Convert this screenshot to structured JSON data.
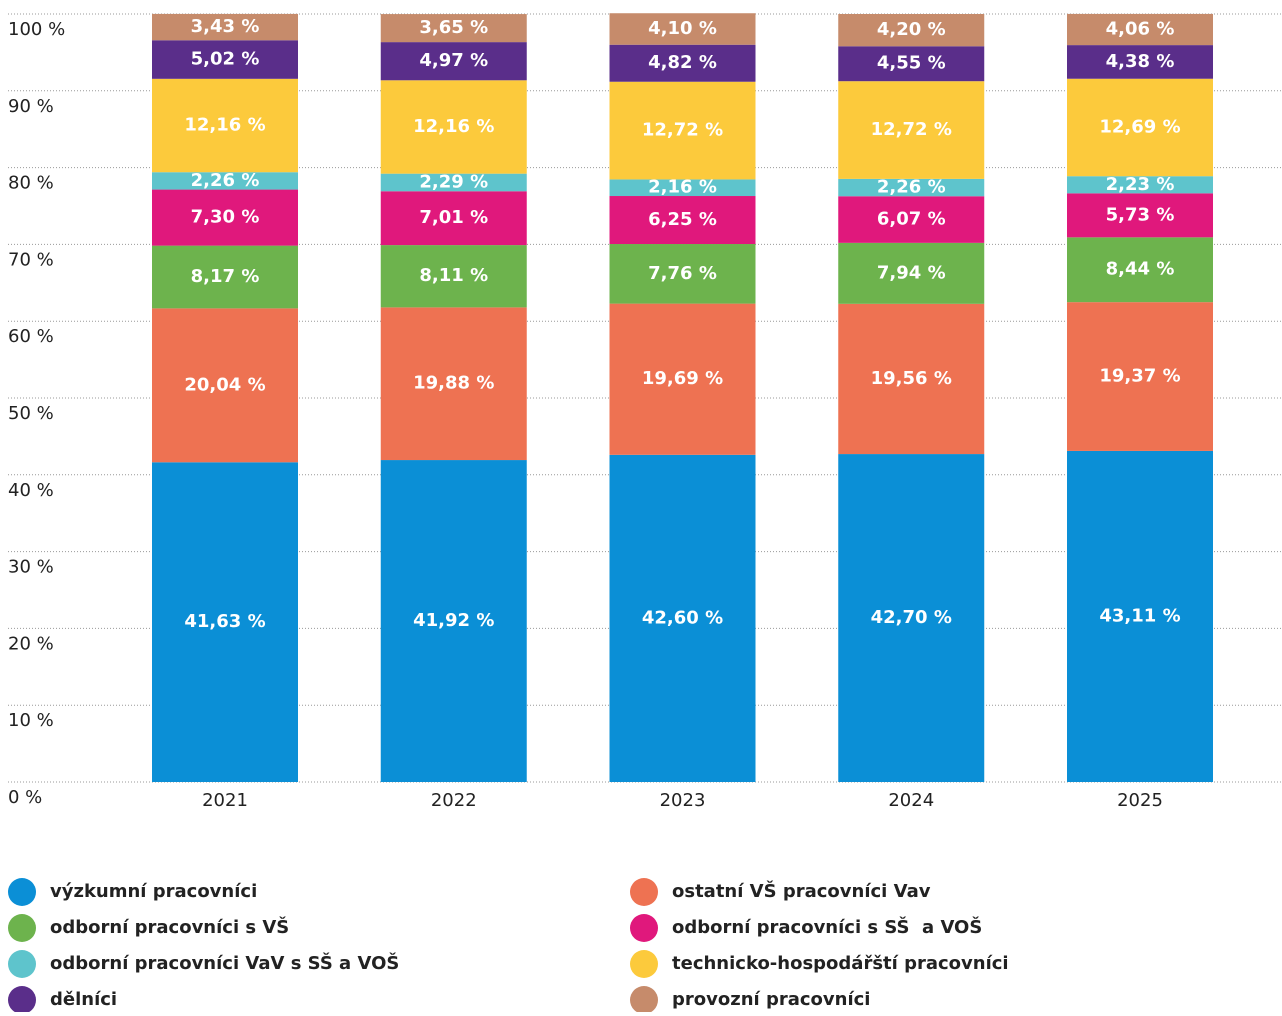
{
  "chart_data": {
    "type": "bar",
    "stacked": true,
    "categories": [
      "2021",
      "2022",
      "2023",
      "2024",
      "2025"
    ],
    "ylim": [
      0,
      100
    ],
    "yticks": [
      {
        "value": 0,
        "label": "0 %"
      },
      {
        "value": 10,
        "label": "10 %"
      },
      {
        "value": 20,
        "label": "20 %"
      },
      {
        "value": 30,
        "label": "30 %"
      },
      {
        "value": 40,
        "label": "40 %"
      },
      {
        "value": 50,
        "label": "50 %"
      },
      {
        "value": 60,
        "label": "60 %"
      },
      {
        "value": 70,
        "label": "70 %"
      },
      {
        "value": 80,
        "label": "80 %"
      },
      {
        "value": 90,
        "label": "90 %"
      },
      {
        "value": 100,
        "label": "100 %"
      }
    ],
    "grid": true,
    "series": [
      {
        "name": "výzkumní pracovníci",
        "color": "#0b8fd6",
        "values": [
          41.63,
          41.92,
          42.6,
          42.7,
          43.11
        ],
        "value_labels": [
          "41,63 %",
          "41,92 %",
          "42,60 %",
          "42,70 %",
          "43,11 %"
        ]
      },
      {
        "name": "ostatní VŠ pracovníci Vav",
        "color": "#ee7252",
        "values": [
          20.04,
          19.88,
          19.69,
          19.56,
          19.37
        ],
        "value_labels": [
          "20,04 %",
          "19,88 %",
          "19,69 %",
          "19,56 %",
          "19,37 %"
        ]
      },
      {
        "name": "odborní pracovníci s VŠ",
        "color": "#6db34d",
        "values": [
          8.17,
          8.11,
          7.76,
          7.94,
          8.44
        ],
        "value_labels": [
          "8,17 %",
          "8,11 %",
          "7,76 %",
          "7,94 %",
          "8,44 %"
        ]
      },
      {
        "name": "odborní pracovníci s SŠ  a VOŠ",
        "color": "#e0187c",
        "values": [
          7.3,
          7.01,
          6.25,
          6.07,
          5.73
        ],
        "value_labels": [
          "7,30 %",
          "7,01 %",
          "6,25 %",
          "6,07 %",
          "5,73 %"
        ]
      },
      {
        "name": "odborní pracovníci VaV s SŠ a VOŠ",
        "color": "#5ec4cc",
        "values": [
          2.26,
          2.29,
          2.16,
          2.26,
          2.23
        ],
        "value_labels": [
          "2,26 %",
          "2,29 %",
          "2,16 %",
          "2,26 %",
          "2,23 %"
        ]
      },
      {
        "name": "technicko-hospodářští pracovníci",
        "color": "#fcca3c",
        "values": [
          12.16,
          12.16,
          12.72,
          12.72,
          12.69
        ],
        "value_labels": [
          "12,16 %",
          "12,16 %",
          "12,72 %",
          "12,72 %",
          "12,69 %"
        ]
      },
      {
        "name": "dělníci",
        "color": "#5a2e8a",
        "values": [
          5.02,
          4.97,
          4.82,
          4.55,
          4.38
        ],
        "value_labels": [
          "5,02 %",
          "4,97 %",
          "4,82 %",
          "4,55 %",
          "4,38 %"
        ]
      },
      {
        "name": "provozní pracovníci",
        "color": "#c68b6b",
        "values": [
          3.43,
          3.65,
          4.1,
          4.2,
          4.06
        ],
        "value_labels": [
          "3,43 %",
          "3,65 %",
          "4,10 %",
          "4,20 %",
          "4,06 %"
        ]
      }
    ]
  }
}
